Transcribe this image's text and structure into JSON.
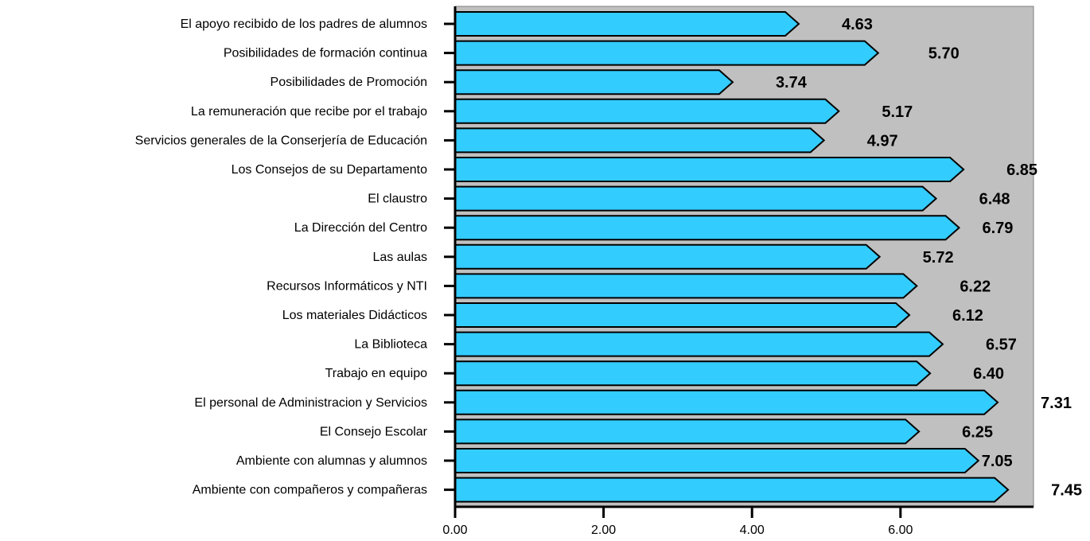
{
  "chart_data": {
    "type": "bar",
    "orientation": "horizontal",
    "categories": [
      "El apoyo recibido de los padres de alumnos",
      "Posibilidades de formación continua",
      "Posibilidades de Promoción",
      "La remuneración que recibe por el trabajo",
      "Servicios generales de la Conserjería de Educación",
      "Los Consejos de su Departamento",
      "El claustro",
      "La Dirección del Centro",
      "Las aulas",
      "Recursos Informáticos y NTI",
      "Los materiales Didácticos",
      "La Biblioteca",
      "Trabajo en equipo",
      "El personal de Administracion y Servicios",
      "El Consejo Escolar",
      "Ambiente con alumnas y alumnos",
      "Ambiente con compañeros y compañeras"
    ],
    "values": [
      4.63,
      5.7,
      3.74,
      5.17,
      4.97,
      6.85,
      6.48,
      6.79,
      5.72,
      6.22,
      6.12,
      6.57,
      6.4,
      7.31,
      6.25,
      7.05,
      7.45
    ],
    "value_labels": [
      "4.63",
      "5.70",
      "3.74",
      "5.17",
      "4.97",
      "6.85",
      "6.48",
      "6.79",
      "5.72",
      "6.22",
      "6.12",
      "6.57",
      "6.40",
      "7.31",
      "6.25",
      "7.05",
      "7.45"
    ],
    "x_ticks": [
      "0.00",
      "2.00",
      "4.00",
      "6.00"
    ],
    "x_tick_values": [
      0,
      2,
      4,
      6
    ],
    "xlim": [
      0,
      7.8
    ],
    "title": "",
    "xlabel": "",
    "ylabel": "",
    "grid": false,
    "colors": {
      "bar_fill": "#33ccff",
      "bar_stroke": "#000000",
      "plot_background": "#c0c0c0"
    }
  }
}
